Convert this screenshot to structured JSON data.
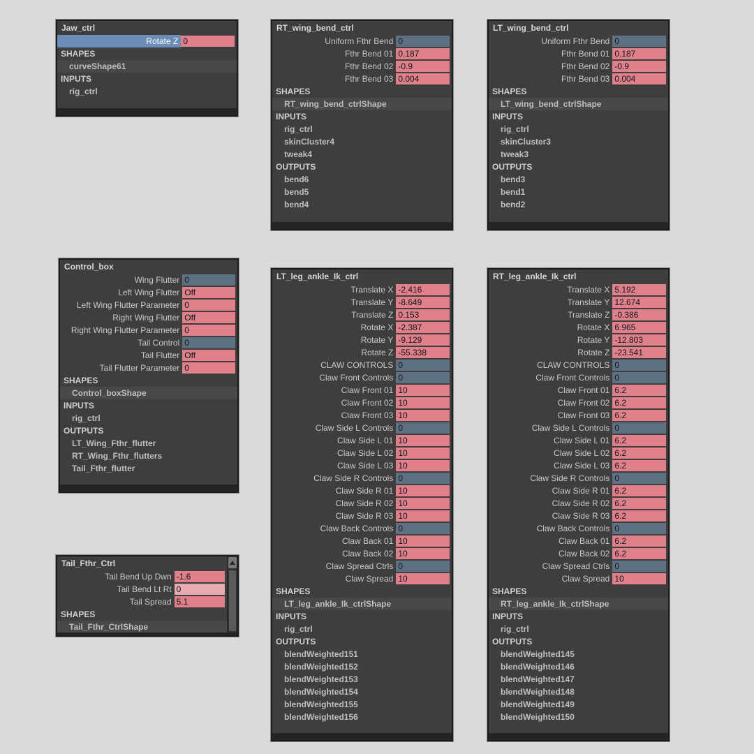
{
  "colors": {
    "canvas_bg": "#dadada",
    "panel_bg": "#3e3e3e",
    "panel_border": "#1c1c1c",
    "footer_bar": "#242424",
    "title_text": "#d6d6d6",
    "label_text": "#c9c9c9",
    "section_text": "#cfcfcf",
    "item_text": "#bfbfbf",
    "shape_row_bg": "#484848",
    "field_pink": "#df808a",
    "field_pale_pink": "#e7aab1",
    "field_blue": "#5e7183",
    "field_text": "#14141c",
    "selected_row_bg": "#6e8db6"
  },
  "panels": [
    {
      "title": "Jaw_ctrl",
      "channels": [
        {
          "label": "Rotate Z",
          "value": "0",
          "field": "pink",
          "selected": true
        }
      ],
      "sections": [
        {
          "header": "SHAPES",
          "items": [
            {
              "name": "curveShape61",
              "shape": true
            }
          ]
        },
        {
          "header": "INPUTS",
          "items": [
            {
              "name": "rig_ctrl"
            }
          ]
        }
      ]
    },
    {
      "title": "RT_wing_bend_ctrl",
      "channels": [
        {
          "label": "Uniform Fthr Bend",
          "value": "0",
          "field": "blue"
        },
        {
          "label": "Fthr Bend 01",
          "value": "0.187",
          "field": "pink"
        },
        {
          "label": "Fthr Bend 02",
          "value": "-0.9",
          "field": "pink"
        },
        {
          "label": "Fthr Bend 03",
          "value": "0.004",
          "field": "pink"
        }
      ],
      "sections": [
        {
          "header": "SHAPES",
          "items": [
            {
              "name": "RT_wing_bend_ctrlShape",
              "shape": true
            }
          ]
        },
        {
          "header": "INPUTS",
          "items": [
            {
              "name": "rig_ctrl"
            },
            {
              "name": "skinCluster4"
            },
            {
              "name": "tweak4"
            }
          ]
        },
        {
          "header": "OUTPUTS",
          "items": [
            {
              "name": "bend6"
            },
            {
              "name": "bend5"
            },
            {
              "name": "bend4"
            }
          ]
        }
      ]
    },
    {
      "title": "LT_wing_bend_ctrl",
      "channels": [
        {
          "label": "Uniform Fthr Bend",
          "value": "0",
          "field": "blue"
        },
        {
          "label": "Fthr Bend 01",
          "value": "0.187",
          "field": "pink"
        },
        {
          "label": "Fthr Bend 02",
          "value": "-0.9",
          "field": "pink"
        },
        {
          "label": "Fthr Bend 03",
          "value": "0.004",
          "field": "pink"
        }
      ],
      "sections": [
        {
          "header": "SHAPES",
          "items": [
            {
              "name": "LT_wing_bend_ctrlShape",
              "shape": true
            }
          ]
        },
        {
          "header": "INPUTS",
          "items": [
            {
              "name": "rig_ctrl"
            },
            {
              "name": "skinCluster3"
            },
            {
              "name": "tweak3"
            }
          ]
        },
        {
          "header": "OUTPUTS",
          "items": [
            {
              "name": "bend3"
            },
            {
              "name": "bend1"
            },
            {
              "name": "bend2"
            }
          ]
        }
      ]
    },
    {
      "title": "Control_box",
      "channels": [
        {
          "label": "Wing Flutter",
          "value": "0",
          "field": "blue"
        },
        {
          "label": "Left Wing Flutter",
          "value": "Off",
          "field": "pink"
        },
        {
          "label": "Left Wing Flutter Parameter",
          "value": "0",
          "field": "pink"
        },
        {
          "label": "Right Wing Flutter",
          "value": "Off",
          "field": "pink"
        },
        {
          "label": "Right Wing Flutter Parameter",
          "value": "0",
          "field": "pink"
        },
        {
          "label": "Tail Control",
          "value": "0",
          "field": "blue"
        },
        {
          "label": "Tail Flutter",
          "value": "Off",
          "field": "pink"
        },
        {
          "label": "Tail Flutter Parameter",
          "value": "0",
          "field": "pink"
        }
      ],
      "sections": [
        {
          "header": "SHAPES",
          "items": [
            {
              "name": "Control_boxShape",
              "shape": true
            }
          ]
        },
        {
          "header": "INPUTS",
          "items": [
            {
              "name": "rig_ctrl"
            }
          ]
        },
        {
          "header": "OUTPUTS",
          "items": [
            {
              "name": "LT_Wing_Fthr_flutter"
            },
            {
              "name": "RT_Wing_Fthr_flutters"
            },
            {
              "name": "Tail_Fthr_flutter"
            }
          ]
        }
      ]
    },
    {
      "title": "LT_leg_ankle_Ik_ctrl",
      "channels": [
        {
          "label": "Translate X",
          "value": "-2.416",
          "field": "pink"
        },
        {
          "label": "Translate Y",
          "value": "-8.649",
          "field": "pink"
        },
        {
          "label": "Translate Z",
          "value": "0.153",
          "field": "pink"
        },
        {
          "label": "Rotate X",
          "value": "-2.387",
          "field": "pink"
        },
        {
          "label": "Rotate Y",
          "value": "-9.129",
          "field": "pink"
        },
        {
          "label": "Rotate Z",
          "value": "-55.338",
          "field": "pink"
        },
        {
          "label": "CLAW CONTROLS",
          "value": "0",
          "field": "blue"
        },
        {
          "label": "Claw Front Controls",
          "value": "0",
          "field": "blue"
        },
        {
          "label": "Claw Front 01",
          "value": "10",
          "field": "pink"
        },
        {
          "label": "Claw Front 02",
          "value": "10",
          "field": "pink"
        },
        {
          "label": "Claw Front 03",
          "value": "10",
          "field": "pink"
        },
        {
          "label": "Claw Side L Controls",
          "value": "0",
          "field": "blue"
        },
        {
          "label": "Claw Side L 01",
          "value": "10",
          "field": "pink"
        },
        {
          "label": "Claw Side L 02",
          "value": "10",
          "field": "pink"
        },
        {
          "label": "Claw Side L 03",
          "value": "10",
          "field": "pink"
        },
        {
          "label": "Claw Side R Controls",
          "value": "0",
          "field": "blue"
        },
        {
          "label": "Claw Side R 01",
          "value": "10",
          "field": "pink"
        },
        {
          "label": "Claw Side R 02",
          "value": "10",
          "field": "pink"
        },
        {
          "label": "Claw Side R 03",
          "value": "10",
          "field": "pink"
        },
        {
          "label": "Claw Back Controls",
          "value": "0",
          "field": "blue"
        },
        {
          "label": "Claw Back 01",
          "value": "10",
          "field": "pink"
        },
        {
          "label": "Claw Back 02",
          "value": "10",
          "field": "pink"
        },
        {
          "label": "Claw Spread Ctrls",
          "value": "0",
          "field": "blue"
        },
        {
          "label": "Claw Spread",
          "value": "10",
          "field": "pink"
        }
      ],
      "sections": [
        {
          "header": "SHAPES",
          "items": [
            {
              "name": "LT_leg_ankle_Ik_ctrlShape",
              "shape": true
            }
          ]
        },
        {
          "header": "INPUTS",
          "items": [
            {
              "name": "rig_ctrl"
            }
          ]
        },
        {
          "header": "OUTPUTS",
          "items": [
            {
              "name": "blendWeighted151"
            },
            {
              "name": "blendWeighted152"
            },
            {
              "name": "blendWeighted153"
            },
            {
              "name": "blendWeighted154"
            },
            {
              "name": "blendWeighted155"
            },
            {
              "name": "blendWeighted156"
            }
          ]
        }
      ]
    },
    {
      "title": "RT_leg_ankle_Ik_ctrl",
      "channels": [
        {
          "label": "Translate X",
          "value": "5.192",
          "field": "pink"
        },
        {
          "label": "Translate Y",
          "value": "12.674",
          "field": "pink"
        },
        {
          "label": "Translate Z",
          "value": "-0.386",
          "field": "pink"
        },
        {
          "label": "Rotate X",
          "value": "6.965",
          "field": "pink"
        },
        {
          "label": "Rotate Y",
          "value": "-12.803",
          "field": "pink"
        },
        {
          "label": "Rotate Z",
          "value": "-23.541",
          "field": "pink"
        },
        {
          "label": "CLAW CONTROLS",
          "value": "0",
          "field": "blue"
        },
        {
          "label": "Claw Front Controls",
          "value": "0",
          "field": "blue"
        },
        {
          "label": "Claw Front 01",
          "value": "6.2",
          "field": "pink"
        },
        {
          "label": "Claw Front 02",
          "value": "6.2",
          "field": "pink"
        },
        {
          "label": "Claw Front 03",
          "value": "6.2",
          "field": "pink"
        },
        {
          "label": "Claw Side L Controls",
          "value": "0",
          "field": "blue"
        },
        {
          "label": "Claw Side L 01",
          "value": "6.2",
          "field": "pink"
        },
        {
          "label": "Claw Side L 02",
          "value": "6.2",
          "field": "pink"
        },
        {
          "label": "Claw Side L 03",
          "value": "6.2",
          "field": "pink"
        },
        {
          "label": "Claw Side R Controls",
          "value": "0",
          "field": "blue"
        },
        {
          "label": "Claw Side R 01",
          "value": "6.2",
          "field": "pink"
        },
        {
          "label": "Claw Side R 02",
          "value": "6.2",
          "field": "pink"
        },
        {
          "label": "Claw Side R 03",
          "value": "6.2",
          "field": "pink"
        },
        {
          "label": "Claw Back Controls",
          "value": "0",
          "field": "blue"
        },
        {
          "label": "Claw Back 01",
          "value": "6.2",
          "field": "pink"
        },
        {
          "label": "Claw Back 02",
          "value": "6.2",
          "field": "pink"
        },
        {
          "label": "Claw Spread Ctrls",
          "value": "0",
          "field": "blue"
        },
        {
          "label": "Claw Spread",
          "value": "10",
          "field": "pink"
        }
      ],
      "sections": [
        {
          "header": "SHAPES",
          "items": [
            {
              "name": "RT_leg_ankle_Ik_ctrlShape",
              "shape": true
            }
          ]
        },
        {
          "header": "INPUTS",
          "items": [
            {
              "name": "rig_ctrl"
            }
          ]
        },
        {
          "header": "OUTPUTS",
          "items": [
            {
              "name": "blendWeighted145"
            },
            {
              "name": "blendWeighted146"
            },
            {
              "name": "blendWeighted147"
            },
            {
              "name": "blendWeighted148"
            },
            {
              "name": "blendWeighted149"
            },
            {
              "name": "blendWeighted150"
            }
          ]
        }
      ]
    },
    {
      "title": "Tail_Fthr_Ctrl",
      "has_scrollbar": true,
      "channels": [
        {
          "label": "Tail Bend Up Dwn",
          "value": "-1.6",
          "field": "pink"
        },
        {
          "label": "Tail Bend Lt Rt",
          "value": "0",
          "field": "pale"
        },
        {
          "label": "Tail Spread",
          "value": "5.1",
          "field": "pink"
        }
      ],
      "sections": [
        {
          "header": "SHAPES",
          "items": [
            {
              "name": "Tail_Fthr_CtrlShape",
              "shape": true
            }
          ]
        }
      ]
    }
  ]
}
